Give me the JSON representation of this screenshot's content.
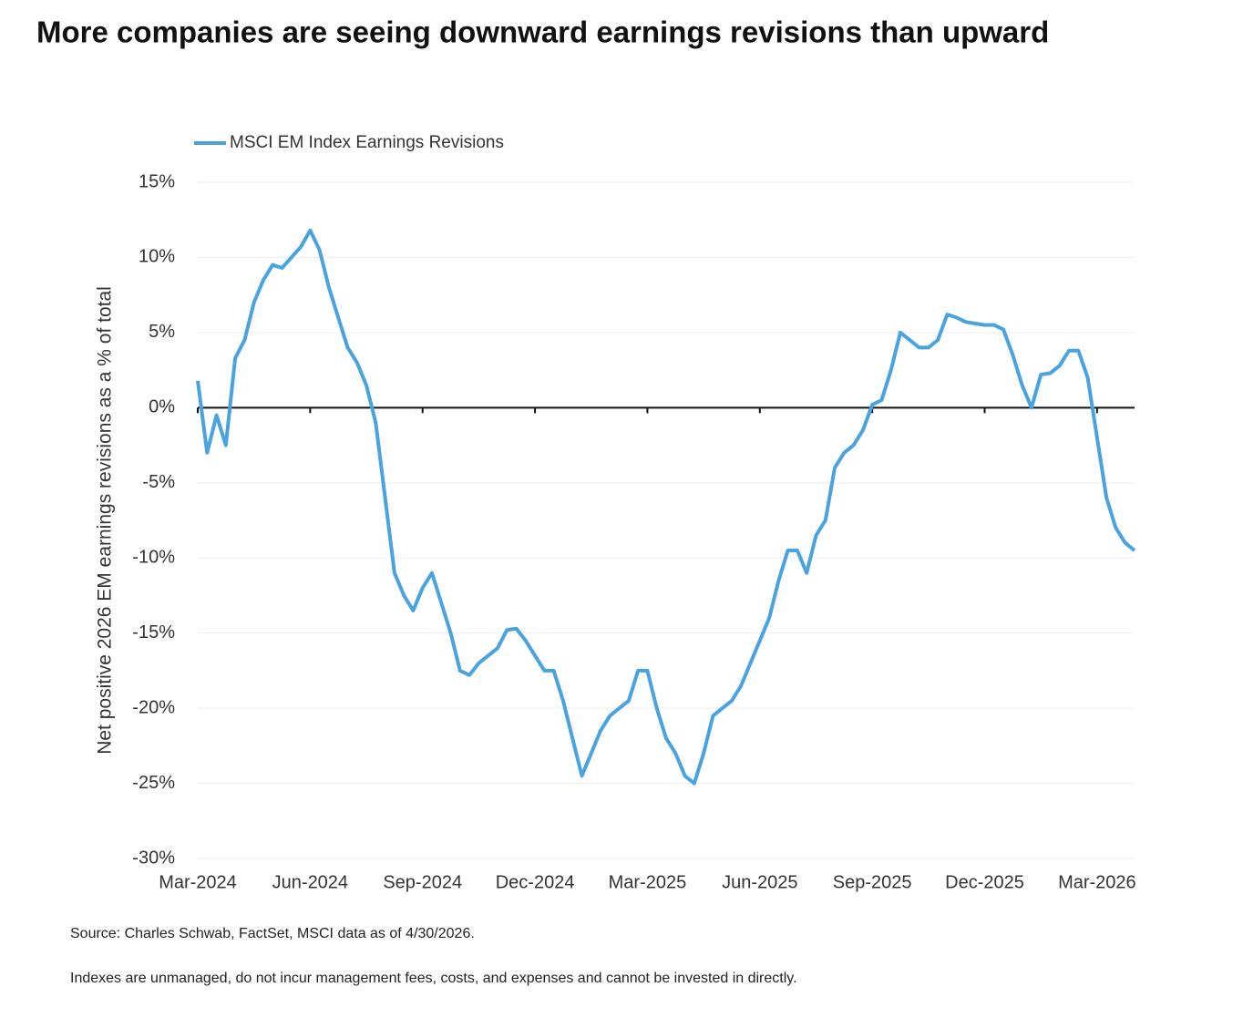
{
  "chart_data": {
    "type": "line",
    "title": "More companies are seeing downward earnings revisions than upward",
    "y_label": "Net positive 2026 EM earnings revisions as a % of total",
    "source": "Source: Charles Schwab, FactSet, MSCI data as of 4/30/2026.",
    "note": "Indexes are unmanaged, do not incur management fees, costs, and expenses and cannot be invested in directly.",
    "categories": [
      "Mar-2024",
      null,
      null,
      null,
      null,
      null,
      null,
      null,
      null,
      null,
      null,
      null,
      "Jun-2024",
      null,
      null,
      null,
      null,
      null,
      null,
      null,
      null,
      null,
      null,
      null,
      "Sep-2024",
      null,
      null,
      null,
      null,
      null,
      null,
      null,
      null,
      null,
      null,
      null,
      "Dec-2024",
      null,
      null,
      null,
      null,
      null,
      null,
      null,
      null,
      null,
      null,
      null,
      "Mar-2025",
      null,
      null,
      null,
      null,
      null,
      null,
      null,
      null,
      null,
      null,
      null,
      "Jun-2025",
      null,
      null,
      null,
      null,
      null,
      null,
      null,
      null,
      null,
      null,
      null,
      "Sep-2025",
      null,
      null,
      null,
      null,
      null,
      null,
      null,
      null,
      null,
      null,
      null,
      "Dec-2025",
      null,
      null,
      null,
      null,
      null,
      null,
      null,
      null,
      null,
      null,
      null,
      "Mar-2026",
      null,
      null,
      null,
      null
    ],
    "series": [
      {
        "name": "MSCI EM Index Earnings Revisions",
        "color": "#4aa3df",
        "values": [
          1.8,
          -3,
          -0.5,
          -2.5,
          3.3,
          4.5,
          7,
          8.5,
          9.5,
          9.3,
          10,
          10.7,
          11.8,
          10.5,
          8,
          6,
          4,
          3,
          1.5,
          -1,
          -6,
          -11,
          -12.5,
          -13.5,
          -12,
          -11,
          -13,
          -15,
          -17.5,
          -17.8,
          -17,
          -16.5,
          -16,
          -14.8,
          -14.7,
          -15.5,
          -16.5,
          -17.5,
          -17.5,
          -19.5,
          -22,
          -24.5,
          -23,
          -21.5,
          -20.5,
          -20,
          -19.5,
          -17.5,
          -17.5,
          -20,
          -22,
          -23,
          -24.5,
          -25,
          -23,
          -20.5,
          -20,
          -19.5,
          -18.5,
          -17,
          -15.5,
          -14,
          -11.5,
          -9.5,
          -9.5,
          -11,
          -8.5,
          -7.5,
          -4,
          -3,
          -2.5,
          -1.5,
          0.2,
          0.5,
          2.5,
          5,
          4.5,
          4,
          4,
          4.5,
          6.2,
          6,
          5.7,
          5.6,
          5.5,
          5.5,
          5.2,
          3.5,
          1.5,
          0,
          2.2,
          2.3,
          2.8,
          3.8,
          3.8,
          2,
          -2,
          -6,
          -8,
          -9,
          -9.5
        ]
      }
    ],
    "ylim": [
      -30,
      15
    ],
    "yticks": [
      {
        "value": 15,
        "label": "15%"
      },
      {
        "value": 10,
        "label": "10%"
      },
      {
        "value": 5,
        "label": "5%"
      },
      {
        "value": 0,
        "label": "0%"
      },
      {
        "value": -5,
        "label": "-5%"
      },
      {
        "value": -10,
        "label": "-10%"
      },
      {
        "value": -15,
        "label": "-15%"
      },
      {
        "value": -20,
        "label": "-20%"
      },
      {
        "value": -25,
        "label": "-25%"
      },
      {
        "value": -30,
        "label": "-30%"
      }
    ],
    "grid": true
  }
}
